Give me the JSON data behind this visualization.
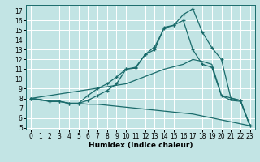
{
  "xlabel": "Humidex (Indice chaleur)",
  "xlim": [
    -0.5,
    23.5
  ],
  "ylim": [
    4.8,
    17.6
  ],
  "xticks": [
    0,
    1,
    2,
    3,
    4,
    5,
    6,
    7,
    8,
    9,
    10,
    11,
    12,
    13,
    14,
    15,
    16,
    17,
    18,
    19,
    20,
    21,
    22,
    23
  ],
  "yticks": [
    5,
    6,
    7,
    8,
    9,
    10,
    11,
    12,
    13,
    14,
    15,
    16,
    17
  ],
  "bg_color": "#c2e4e4",
  "line_color": "#1a6b6b",
  "grid_color": "#ffffff",
  "lines": [
    {
      "x": [
        0,
        1,
        2,
        3,
        4,
        5,
        6,
        7,
        8,
        9,
        10,
        11,
        12,
        13,
        14,
        15,
        16,
        17,
        18,
        19,
        20,
        21,
        22,
        23
      ],
      "y": [
        8.0,
        7.9,
        7.7,
        7.7,
        7.5,
        7.5,
        8.3,
        9.0,
        9.5,
        10.2,
        11.0,
        11.1,
        12.5,
        13.0,
        15.3,
        15.5,
        16.6,
        17.2,
        14.8,
        13.2,
        12.0,
        8.0,
        7.8,
        5.2
      ],
      "marker": "+"
    },
    {
      "x": [
        0,
        2,
        3,
        4,
        5,
        6,
        7,
        8,
        9,
        10,
        11,
        12,
        13,
        14,
        15,
        16,
        17,
        18,
        19,
        20,
        22,
        23
      ],
      "y": [
        8.0,
        7.7,
        7.7,
        7.5,
        7.5,
        7.8,
        8.3,
        8.8,
        9.5,
        11.0,
        11.2,
        12.5,
        13.3,
        15.2,
        15.5,
        16.0,
        13.0,
        11.5,
        11.2,
        8.3,
        7.8,
        5.2
      ],
      "marker": "+"
    },
    {
      "x": [
        0,
        10,
        14,
        16,
        17,
        18,
        19,
        20,
        21,
        22,
        23
      ],
      "y": [
        8.0,
        9.5,
        11.0,
        11.5,
        12.0,
        11.8,
        11.5,
        8.3,
        7.8,
        7.7,
        5.2
      ],
      "marker": null
    },
    {
      "x": [
        0,
        2,
        3,
        4,
        5,
        6,
        7,
        8,
        9,
        10,
        11,
        12,
        13,
        14,
        15,
        16,
        17,
        18,
        19,
        20,
        21,
        22,
        23
      ],
      "y": [
        8.0,
        7.7,
        7.7,
        7.5,
        7.5,
        7.4,
        7.4,
        7.3,
        7.2,
        7.1,
        7.0,
        6.9,
        6.8,
        6.7,
        6.6,
        6.5,
        6.4,
        6.2,
        6.0,
        5.8,
        5.6,
        5.4,
        5.2
      ],
      "marker": null
    }
  ]
}
